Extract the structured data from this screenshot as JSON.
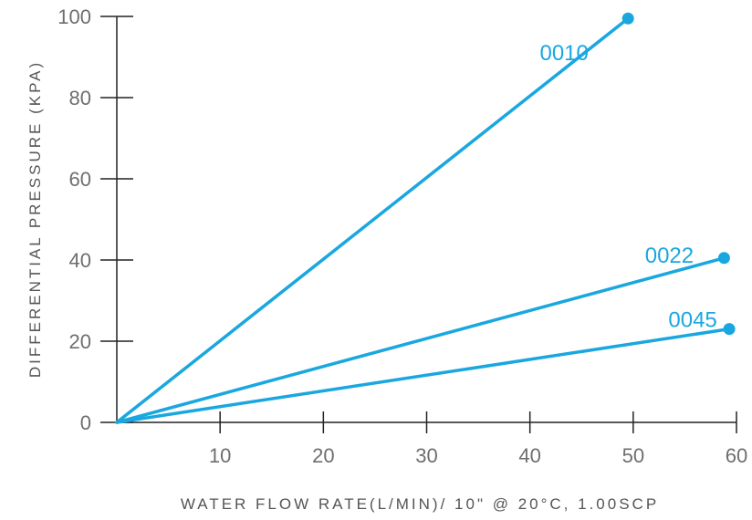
{
  "chart_data": {
    "type": "line",
    "title": "",
    "xlabel": "WATER FLOW RATE(L/MIN)/ 10\" @ 20°C, 1.00SCP",
    "ylabel": "DIFFERENTIAL PRESSURE (KPA)",
    "xlim": [
      0,
      60
    ],
    "ylim": [
      0,
      100
    ],
    "x_ticks": [
      10,
      20,
      30,
      40,
      50,
      60
    ],
    "y_ticks": [
      0,
      20,
      40,
      60,
      80,
      100
    ],
    "grid": false,
    "legend": "none",
    "series_color": "#1aa7e0",
    "axis_color": "#222222",
    "series": [
      {
        "name": "0010",
        "x": [
          0,
          49.5
        ],
        "y": [
          0,
          99.5
        ]
      },
      {
        "name": "0022",
        "x": [
          0,
          58.8
        ],
        "y": [
          0,
          40.5
        ]
      },
      {
        "name": "0045",
        "x": [
          0,
          59.3
        ],
        "y": [
          0,
          23
        ]
      }
    ]
  }
}
